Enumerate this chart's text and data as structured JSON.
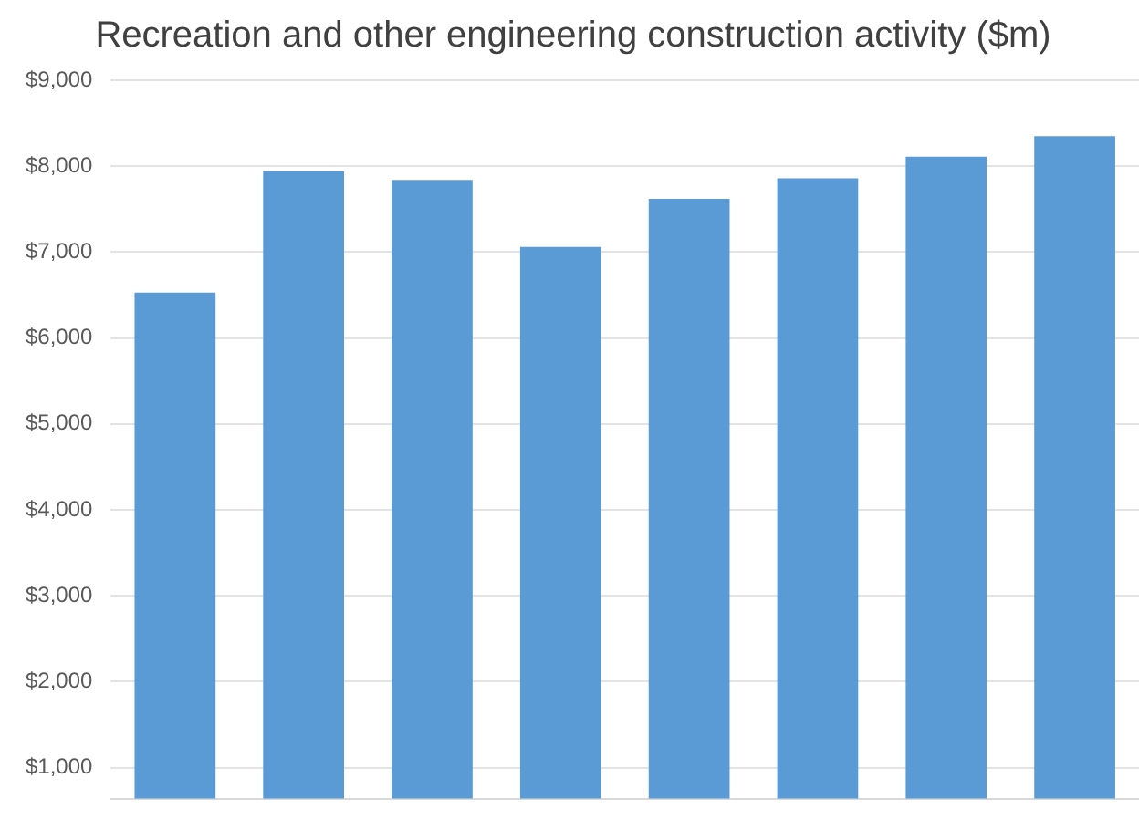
{
  "chart_data": {
    "type": "bar",
    "title": "Recreation and other engineering construction activity ($m)",
    "categories": [
      null,
      null,
      null,
      null,
      null,
      null,
      null,
      null
    ],
    "values": [
      6530,
      7940,
      7840,
      7060,
      7620,
      7860,
      8110,
      8350
    ],
    "color": "#5b9bd5",
    "ylim": [
      640,
      9000
    ],
    "yticks": [
      {
        "value": 1000,
        "label": "$1,000"
      },
      {
        "value": 2000,
        "label": "$2,000"
      },
      {
        "value": 3000,
        "label": "$3,000"
      },
      {
        "value": 4000,
        "label": "$4,000"
      },
      {
        "value": 5000,
        "label": "$5,000"
      },
      {
        "value": 6000,
        "label": "$6,000"
      },
      {
        "value": 7000,
        "label": "$7,000"
      },
      {
        "value": 8000,
        "label": "$8,000"
      },
      {
        "value": 9000,
        "label": "$9,000"
      }
    ],
    "grid": "y",
    "tick_labels": "y"
  }
}
